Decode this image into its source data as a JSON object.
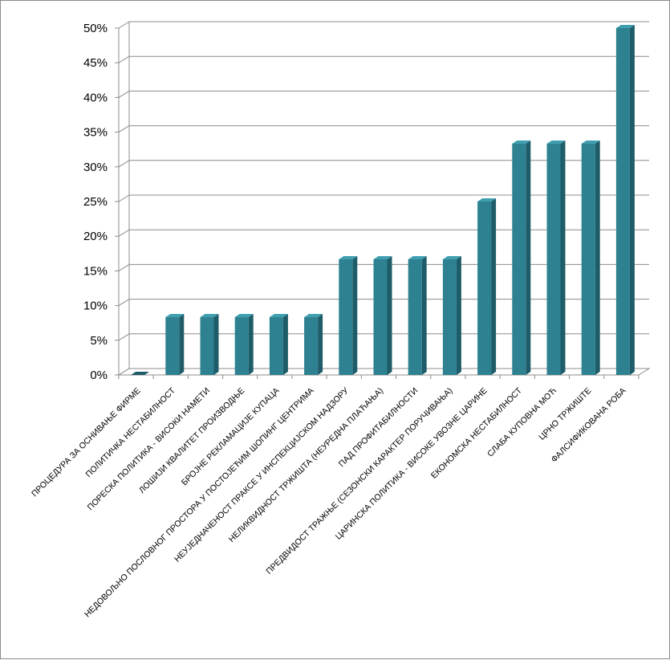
{
  "chart_data": {
    "type": "bar",
    "style": "3d-column",
    "title": "",
    "xlabel": "",
    "ylabel": "",
    "ylim": [
      0,
      50
    ],
    "y_tick_labels": [
      "0%",
      "5%",
      "10%",
      "15%",
      "20%",
      "25%",
      "30%",
      "35%",
      "40%",
      "45%",
      "50%"
    ],
    "grid": true,
    "legend": "none",
    "bar_color": "#2e8190",
    "categories": [
      "ПРОЦЕДУРА ЗА ОСНИВАЊЕ ФИРМЕ",
      "ПОЛИТИЧКА НЕСТАБИЛНОСТ",
      "ПОРЕСКА ПОЛИТИКА - ВИСОКИ НАМЕТИ",
      "ЛОШИЈИ КВАЛИТЕТ ПРОИЗВОДЊЕ",
      "БРОЈНЕ РЕКЛАМАЦИЈЕ КУПАЦА",
      "НЕДОВОЉНО ПОСЛОВНОГ ПРОСТОРА У ПОСТОЈЕЋИМ ШОПИНГ ЦЕНТРИМА",
      "НЕУЈЕДНАЧЕНОСТ ПРАКСЕ У ИНСПЕКЦИЈСКОМ НАДЗОРУ",
      "НЕЛИКВИДНОСТ ТРЖИШТА (НЕУРЕДНА ПЛАЋАЊА)",
      "ПАД ПРОФИТАБИЛНОСТИ",
      "ПРЕДВИДОСТ ТРАЖЊЕ (СЕЗОНСКИ КАРАКТЕР ПОРУЧИВАЊА)",
      "ЦАРИНСКА ПОЛИТИКА - ВИСОКЕ УВОЗНЕ ЦАРИНЕ",
      "ЕКОНОМСКА НЕСТАБИЛНОСТ",
      "СЛАБА КУПОВНА МОЋ",
      "ЦРНО ТРЖИШТЕ",
      "ФАЛСИФИКОВАНА РОБА"
    ],
    "values": [
      0,
      8.33,
      8.33,
      8.33,
      8.33,
      8.33,
      16.67,
      16.67,
      16.67,
      16.67,
      25,
      33.33,
      33.33,
      33.33,
      50
    ]
  }
}
